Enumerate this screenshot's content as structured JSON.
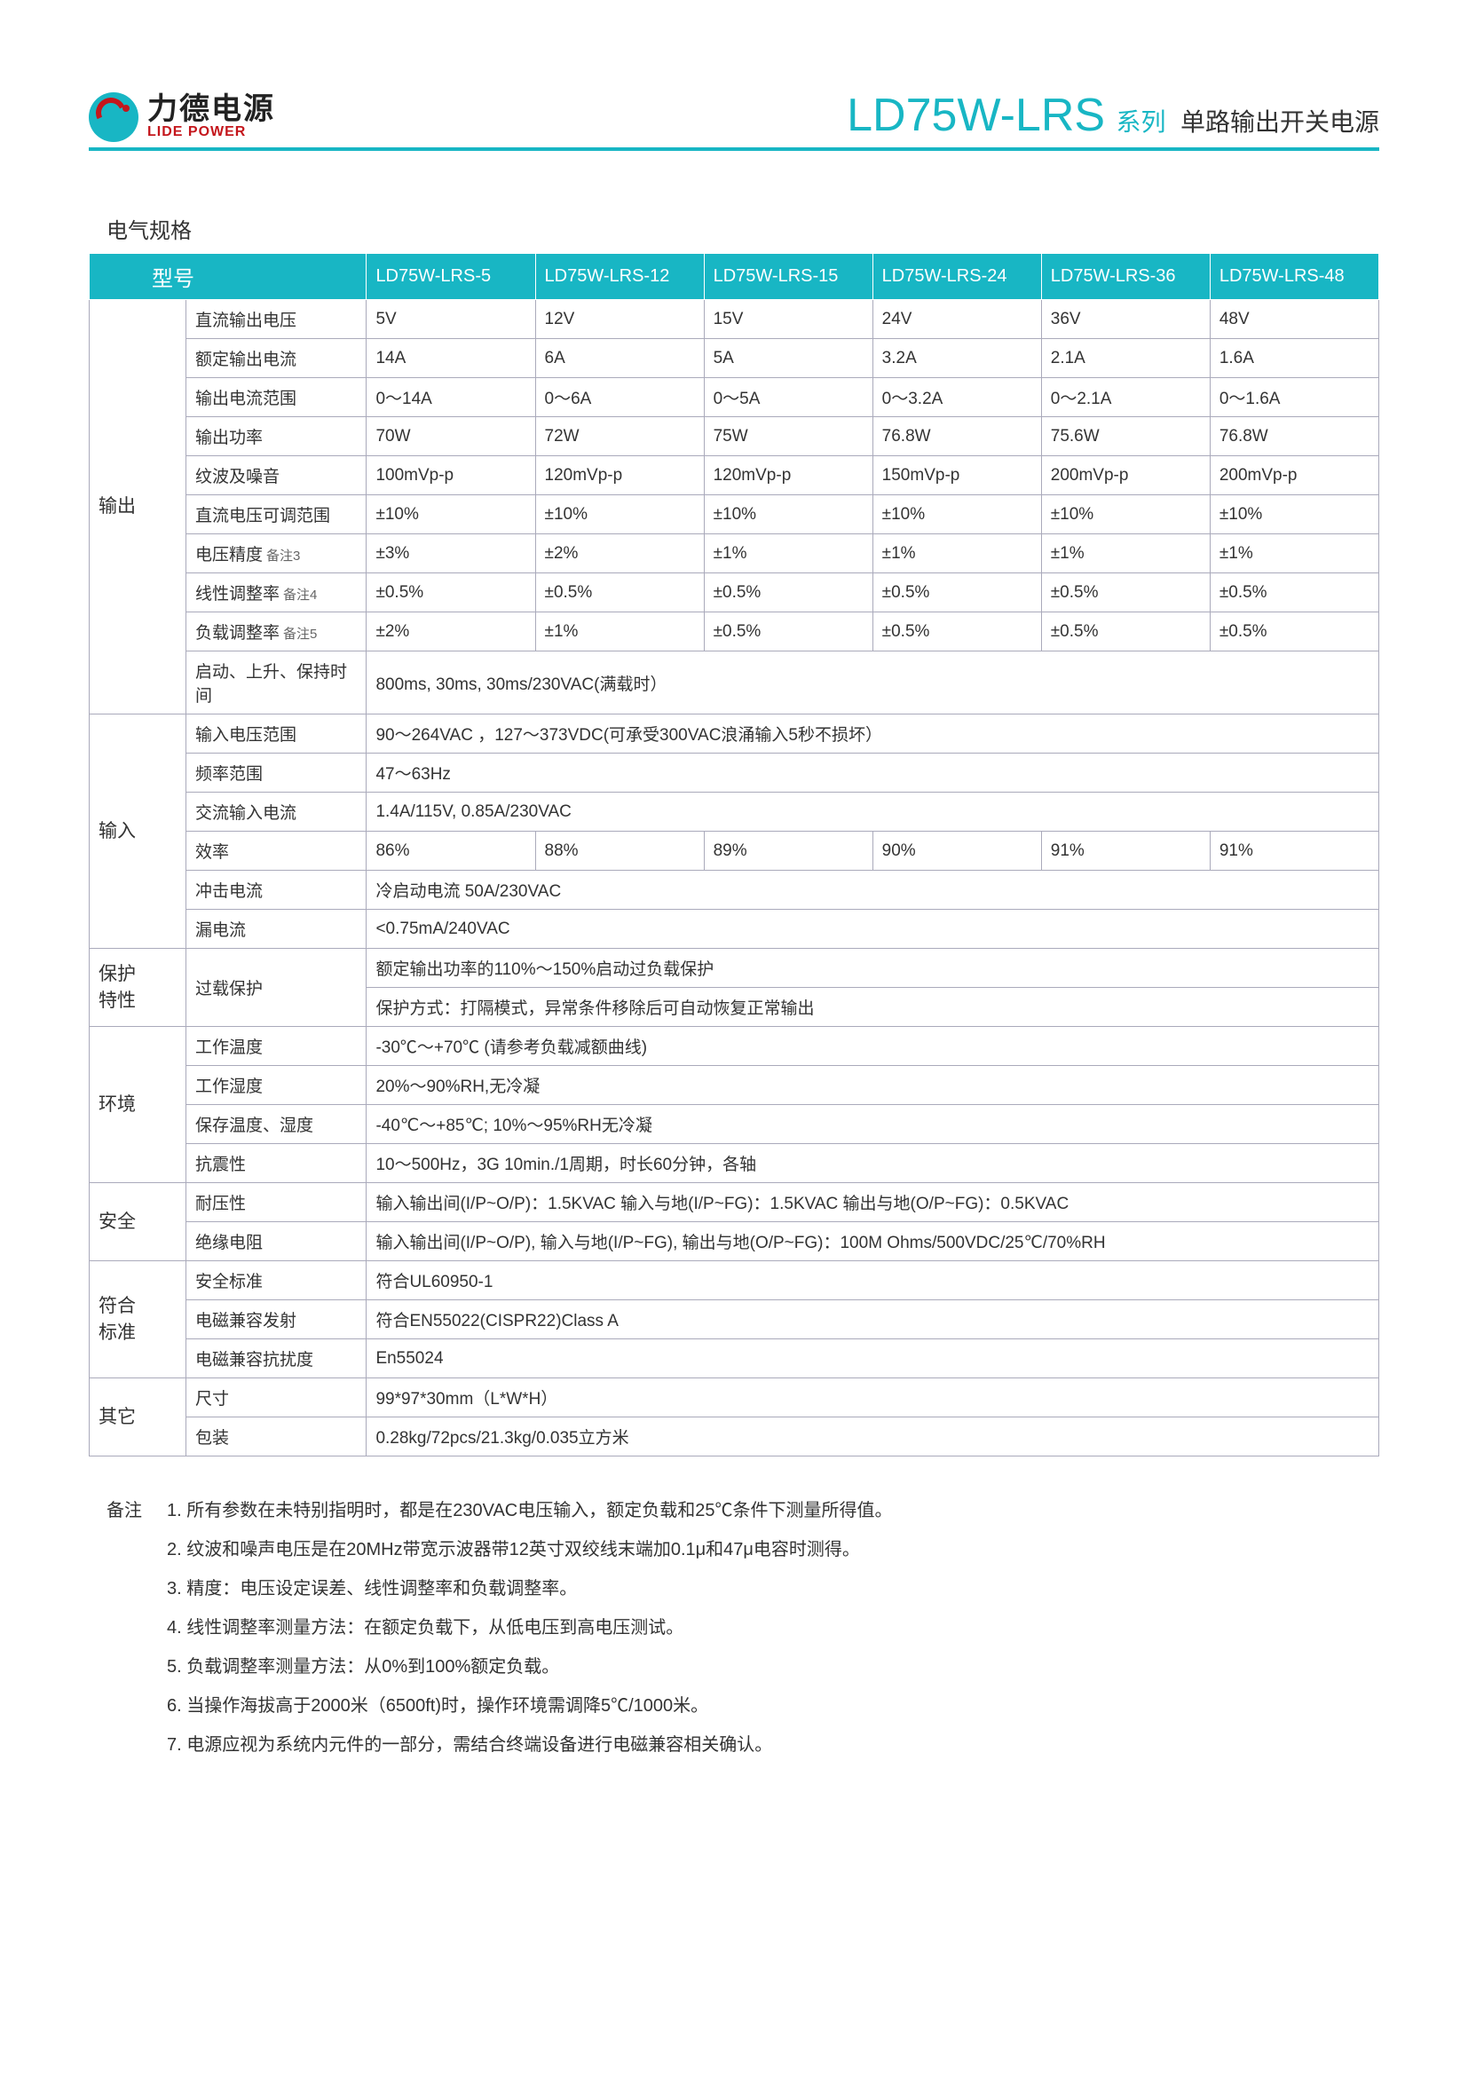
{
  "colors": {
    "accent": "#18b6c4",
    "logoRed": "#c4161c",
    "border": "#aab",
    "text": "#333333",
    "bg": "#ffffff"
  },
  "logo": {
    "cn": "力德电源",
    "en": "LIDE POWER"
  },
  "title": {
    "main": "LD75W-LRS",
    "series": "系列",
    "desc": "单路输出开关电源"
  },
  "sectionTitle": "电气规格",
  "headerLabel": "型号",
  "models": [
    "LD75W-LRS-5",
    "LD75W-LRS-12",
    "LD75W-LRS-15",
    "LD75W-LRS-24",
    "LD75W-LRS-36",
    "LD75W-LRS-48"
  ],
  "dcVoltage": {
    "label": "直流输出电压",
    "vals": [
      "5V",
      "12V",
      "15V",
      "24V",
      "36V",
      "48V"
    ]
  },
  "ratedCurrent": {
    "label": "额定输出电流",
    "vals": [
      "14A",
      "6A",
      "5A",
      "3.2A",
      "2.1A",
      "1.6A"
    ]
  },
  "currentRange": {
    "label": "输出电流范围",
    "vals": [
      "0～14A",
      "0～6A",
      "0～5A",
      "0～3.2A",
      "0～2.1A",
      "0～1.6A"
    ]
  },
  "outputPower": {
    "label": "输出功率",
    "vals": [
      "70W",
      "72W",
      "75W",
      "76.8W",
      "75.6W",
      "76.8W"
    ]
  },
  "ripple": {
    "label": "纹波及噪音",
    "vals": [
      "100mVp-p",
      "120mVp-p",
      "120mVp-p",
      "150mVp-p",
      "200mVp-p",
      "200mVp-p"
    ]
  },
  "adjRange": {
    "label": "直流电压可调范围",
    "vals": [
      "±10%",
      "±10%",
      "±10%",
      "±10%",
      "±10%",
      "±10%"
    ]
  },
  "voltAccuracy": {
    "label": "电压精度",
    "note": "备注3",
    "vals": [
      "±3%",
      "±2%",
      "±1%",
      "±1%",
      "±1%",
      "±1%"
    ]
  },
  "lineReg": {
    "label": "线性调整率",
    "note": "备注4",
    "vals": [
      "±0.5%",
      "±0.5%",
      "±0.5%",
      "±0.5%",
      "±0.5%",
      "±0.5%"
    ]
  },
  "loadReg": {
    "label": "负载调整率",
    "note": "备注5",
    "vals": [
      "±2%",
      "±1%",
      "±0.5%",
      "±0.5%",
      "±0.5%",
      "±0.5%"
    ]
  },
  "startHold": {
    "label": "启动、上升、保持时间",
    "span": "800ms, 30ms, 30ms/230VAC(满载时）"
  },
  "inputVRange": {
    "label": "输入电压范围",
    "span": "90～264VAC ，127～373VDC(可承受300VAC浪涌输入5秒不损坏）"
  },
  "freqRange": {
    "label": "频率范围",
    "span": "47～63Hz"
  },
  "acInput": {
    "label": "交流输入电流",
    "span": "1.4A/115V, 0.85A/230VAC"
  },
  "efficiency": {
    "label": "效率",
    "vals": [
      "86%",
      "88%",
      "89%",
      "90%",
      "91%",
      "91%"
    ]
  },
  "inrush": {
    "label": "冲击电流",
    "span": "冷启动电流 50A/230VAC"
  },
  "leakage": {
    "label": "漏电流",
    "span": "<0.75mA/240VAC"
  },
  "overload1": "额定输出功率的110%～150%启动过负载保护",
  "overload2": "保护方式：打隔模式，异常条件移除后可自动恢复正常输出",
  "overloadLabel": "过载保护",
  "workTemp": {
    "label": "工作温度",
    "span": "-30℃～+70℃ (请参考负载减额曲线)"
  },
  "workHum": {
    "label": "工作湿度",
    "span": "20%～90%RH,无冷凝"
  },
  "storage": {
    "label": "保存温度、湿度",
    "span": "-40℃～+85℃; 10%～95%RH无冷凝"
  },
  "vibration": {
    "label": "抗震性",
    "span": "10～500Hz，3G 10min./1周期，时长60分钟，各轴"
  },
  "withstand": {
    "label": "耐压性",
    "span": "输入输出间(I/P~O/P)：1.5KVAC  输入与地(I/P~FG)：1.5KVAC  输出与地(O/P~FG)：0.5KVAC"
  },
  "insulation": {
    "label": "绝缘电阻",
    "span": "输入输出间(I/P~O/P), 输入与地(I/P~FG), 输出与地(O/P~FG)：100M Ohms/500VDC/25℃/70%RH"
  },
  "safetyStd": {
    "label": "安全标准",
    "span": "符合UL60950-1"
  },
  "emcEmission": {
    "label": "电磁兼容发射",
    "span": "符合EN55022(CISPR22)Class A"
  },
  "emcImmunity": {
    "label": "电磁兼容抗扰度",
    "span": "En55024"
  },
  "dimensions": {
    "label": "尺寸",
    "span": "99*97*30mm（L*W*H）"
  },
  "packaging": {
    "label": "包装",
    "span": "0.28kg/72pcs/21.3kg/0.035立方米"
  },
  "cats": {
    "output": "输出",
    "input": "输入",
    "protect": "保护\n特性",
    "env": "环境",
    "safety": "安全",
    "compliance": "符合\n标准",
    "others": "其它"
  },
  "notesLabel": "备注",
  "notes": [
    "1. 所有参数在未特别指明时，都是在230VAC电压输入，额定负载和25℃条件下测量所得值。",
    "2. 纹波和噪声电压是在20MHz带宽示波器带12英寸双绞线末端加0.1μ和47μ电容时测得。",
    "3. 精度：电压设定误差、线性调整率和负载调整率。",
    "4. 线性调整率测量方法：在额定负载下，从低电压到高电压测试。",
    "5. 负载调整率测量方法：从0%到100%额定负载。",
    "6. 当操作海拔高于2000米（6500ft)时，操作环境需调降5℃/1000米。",
    "7. 电源应视为系统内元件的一部分，需结合终端设备进行电磁兼容相关确认。"
  ]
}
